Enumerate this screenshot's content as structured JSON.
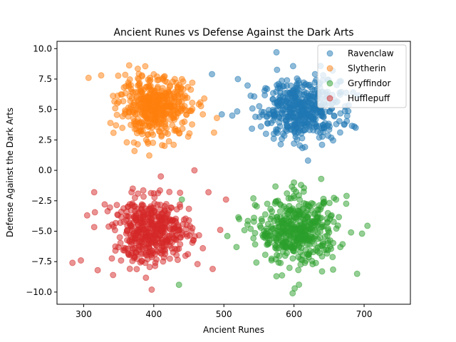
{
  "chart_data": {
    "type": "scatter",
    "title": "Ancient Runes vs Defense Against the Dark Arts",
    "xlabel": "Ancient Runes",
    "ylabel": "Defense Against the Dark Arts",
    "xlim": [
      262,
      766
    ],
    "ylim": [
      -11.0,
      10.6
    ],
    "xticks": [
      300,
      400,
      500,
      600,
      700
    ],
    "yticks": [
      -10.0,
      -7.5,
      -5.0,
      -2.5,
      0.0,
      2.5,
      5.0,
      7.5,
      10.0
    ],
    "xtick_labels": [
      "300",
      "400",
      "500",
      "600",
      "700"
    ],
    "ytick_labels": [
      "−10.0",
      "−7.5",
      "−5.0",
      "−2.5",
      "0.0",
      "2.5",
      "5.0",
      "7.5",
      "10.0"
    ],
    "grid": false,
    "legend_position": "top-right",
    "marker_alpha": 0.5,
    "series": [
      {
        "name": "Ravenclaw",
        "color": "#1f77b4",
        "center": [
          610,
          5.0
        ],
        "spread": [
          28,
          1.2
        ],
        "count": 450,
        "points": [
          [
            575,
            9.7
          ],
          [
            483,
            7.9
          ],
          [
            497,
            4.6
          ],
          [
            512,
            4.5
          ],
          [
            520,
            7.5
          ],
          [
            688,
            3.5
          ],
          [
            672,
            3.8
          ],
          [
            665,
            7.3
          ],
          [
            655,
            8.2
          ],
          [
            640,
            2.1
          ],
          [
            620,
            0.8
          ],
          [
            590,
            7.4
          ],
          [
            545,
            4.4
          ],
          [
            560,
            3.0
          ],
          [
            600,
            2.2
          ],
          [
            630,
            7.9
          ]
        ]
      },
      {
        "name": "Slytherin",
        "color": "#ff7f0e",
        "center": [
          402,
          5.2
        ],
        "spread": [
          25,
          1.2
        ],
        "count": 450,
        "points": [
          [
            307,
            7.6
          ],
          [
            325,
            7.8
          ],
          [
            472,
            5.9
          ],
          [
            490,
            4.3
          ],
          [
            486,
            3.1
          ],
          [
            470,
            4.6
          ],
          [
            392,
            2.2
          ],
          [
            375,
            3.4
          ],
          [
            450,
            4.9
          ],
          [
            360,
            6.9
          ],
          [
            430,
            7.5
          ],
          [
            345,
            5.1
          ],
          [
            420,
            3.0
          ],
          [
            455,
            7.2
          ]
        ]
      },
      {
        "name": "Gryffindor",
        "color": "#2ca02c",
        "center": [
          605,
          -5.0
        ],
        "spread": [
          28,
          1.3
        ],
        "count": 450,
        "points": [
          [
            598,
            -10.1
          ],
          [
            601,
            -9.7
          ],
          [
            436,
            -9.4
          ],
          [
            690,
            -8.5
          ],
          [
            697,
            -5.2
          ],
          [
            505,
            -5.4
          ],
          [
            518,
            -6.3
          ],
          [
            543,
            -3.9
          ],
          [
            542,
            -2.3
          ],
          [
            600,
            -1.0
          ],
          [
            610,
            -1.2
          ],
          [
            660,
            -2.4
          ],
          [
            675,
            -2.1
          ],
          [
            640,
            -8.3
          ],
          [
            575,
            -8.7
          ],
          [
            620,
            -2.8
          ],
          [
            440,
            -2.4
          ]
        ]
      },
      {
        "name": "Hufflepuff",
        "color": "#d62728",
        "center": [
          398,
          -5.0
        ],
        "spread": [
          27,
          1.3
        ],
        "count": 450,
        "points": [
          [
            284,
            -7.6
          ],
          [
            296,
            -7.4
          ],
          [
            305,
            -3.7
          ],
          [
            315,
            -1.8
          ],
          [
            458,
            0.0
          ],
          [
            478,
            -1.8
          ],
          [
            503,
            -2.4
          ],
          [
            484,
            -8.1
          ],
          [
            397,
            -9.8
          ],
          [
            410,
            -0.5
          ],
          [
            342,
            -8.6
          ],
          [
            320,
            -8.2
          ],
          [
            470,
            -6.4
          ],
          [
            330,
            -2.8
          ],
          [
            370,
            -1.5
          ]
        ]
      }
    ]
  }
}
